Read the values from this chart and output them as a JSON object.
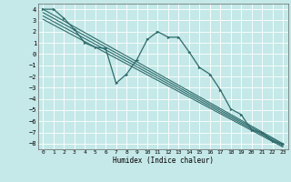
{
  "xlabel": "Humidex (Indice chaleur)",
  "ylabel": "",
  "xlim": [
    -0.5,
    23.5
  ],
  "ylim": [
    -8.5,
    4.5
  ],
  "yticks": [
    -8,
    -7,
    -6,
    -5,
    -4,
    -3,
    -2,
    -1,
    0,
    1,
    2,
    3,
    4
  ],
  "xticks": [
    0,
    1,
    2,
    3,
    4,
    5,
    6,
    7,
    8,
    9,
    10,
    11,
    12,
    13,
    14,
    15,
    16,
    17,
    18,
    19,
    20,
    21,
    22,
    23
  ],
  "bg_color": "#c5e8e8",
  "grid_color": "#ffffff",
  "line_color": "#2e6b6b",
  "main_x": [
    0,
    1,
    2,
    3,
    4,
    5,
    6,
    7,
    8,
    9,
    10,
    11,
    12,
    13,
    14,
    15,
    16,
    17,
    18,
    19,
    20,
    21,
    22,
    23
  ],
  "main_y": [
    4.0,
    4.0,
    3.2,
    2.2,
    1.0,
    0.6,
    0.5,
    -2.6,
    -1.8,
    -0.5,
    1.3,
    2.0,
    1.5,
    1.5,
    0.2,
    -1.2,
    -1.8,
    -3.2,
    -4.9,
    -5.4,
    -6.8,
    -7.0,
    -7.8,
    -8.0
  ],
  "line1_x": [
    0,
    23
  ],
  "line1_y": [
    4.0,
    -8.0
  ],
  "line2_x": [
    0,
    23
  ],
  "line2_y": [
    3.7,
    -8.1
  ],
  "line3_x": [
    0,
    23
  ],
  "line3_y": [
    3.4,
    -8.2
  ],
  "line4_x": [
    0,
    23
  ],
  "line4_y": [
    3.1,
    -8.3
  ]
}
